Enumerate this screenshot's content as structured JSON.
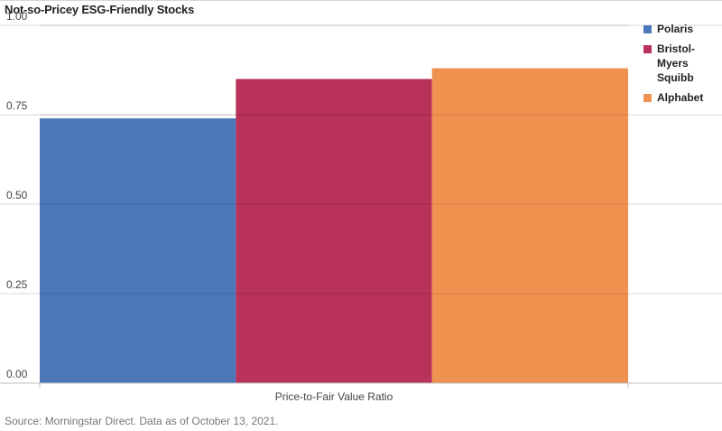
{
  "chart_data": {
    "type": "bar",
    "title": "Not-so-Pricey ESG-Friendly Stocks",
    "xlabel": "Price-to-Fair Value Ratio",
    "ylabel": "",
    "ylim": [
      0,
      1.0
    ],
    "yticks": [
      "0.00",
      "0.25",
      "0.50",
      "0.75",
      "1.00"
    ],
    "yticks_values": [
      0,
      0.25,
      0.5,
      0.75,
      1.0
    ],
    "grid": true,
    "legend_position": "right",
    "series": [
      {
        "name": "Polaris",
        "value": 0.74,
        "color": "#4a78b9"
      },
      {
        "name": "Bristol-Myers Squibb",
        "value": 0.85,
        "color": "#b8325a"
      },
      {
        "name": "Alphabet",
        "value": 0.88,
        "color": "#f0924f"
      }
    ]
  },
  "source": "Source: Morningstar Direct.  Data as of October 13, 2021."
}
